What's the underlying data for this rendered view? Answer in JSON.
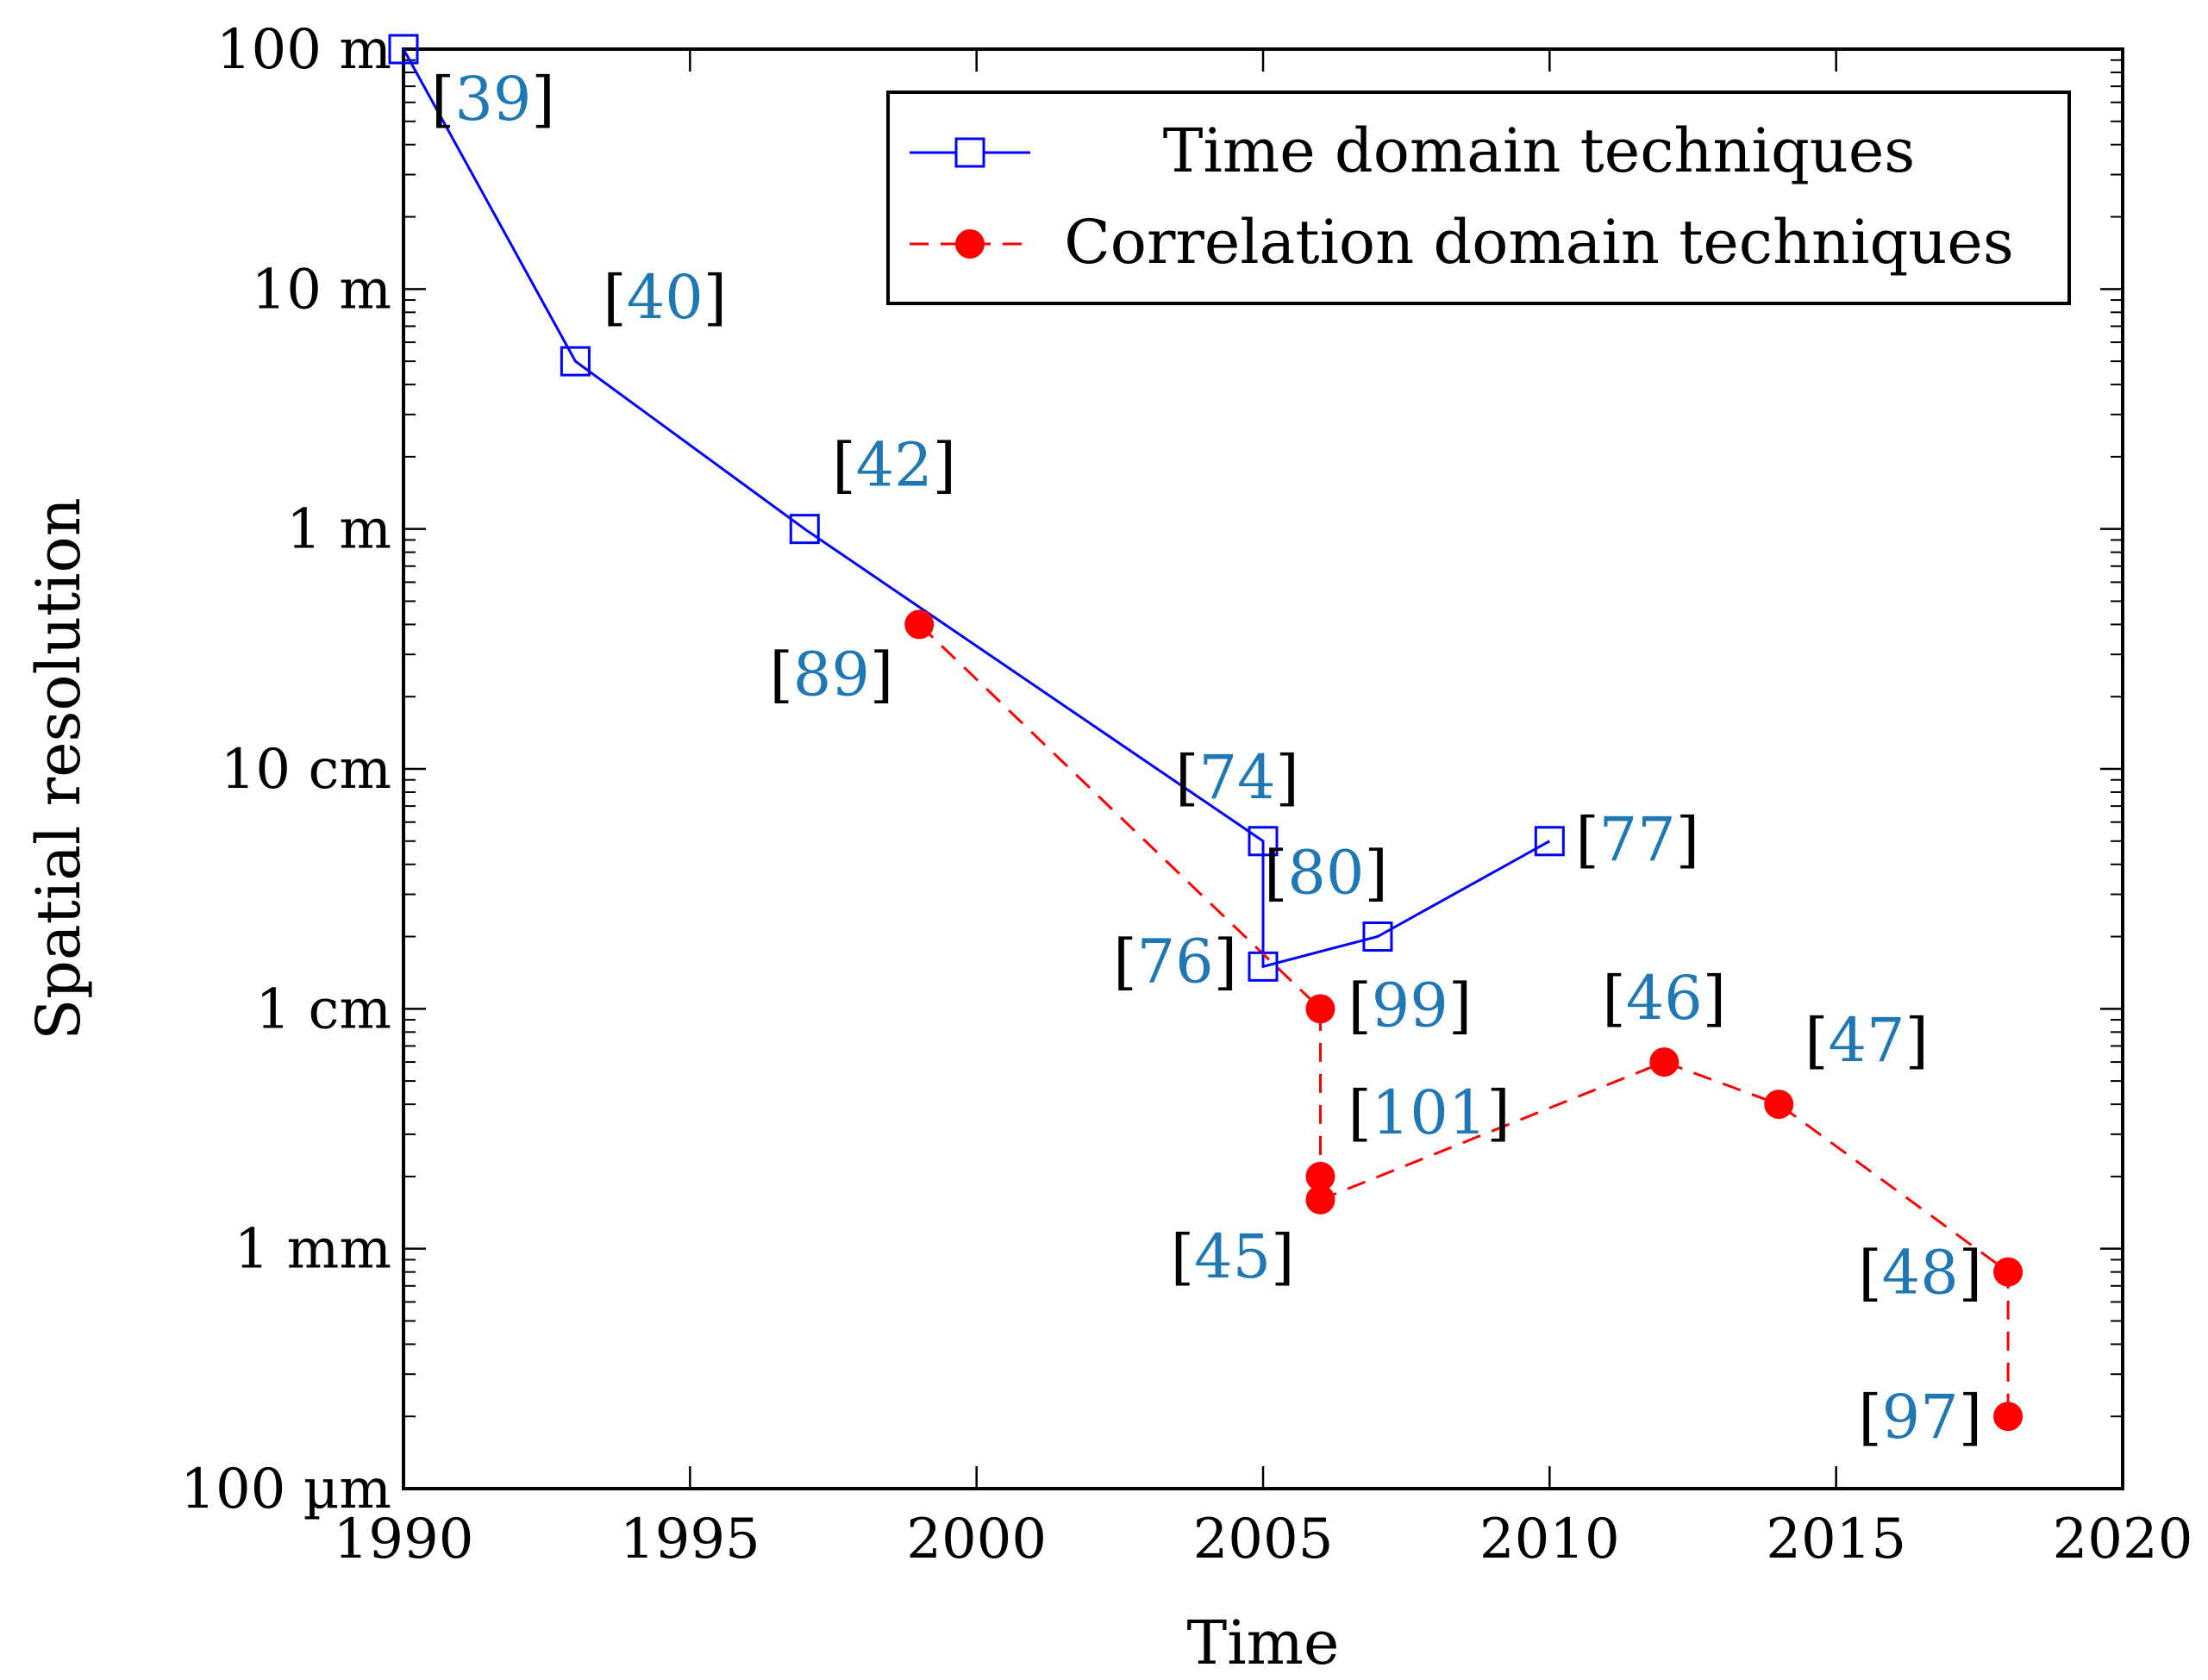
{
  "chart_data": {
    "type": "line",
    "title": "",
    "xlabel": "Time",
    "ylabel": "Spatial resolution",
    "xlim": [
      1990,
      2020
    ],
    "ylim_m": [
      0.0001,
      100
    ],
    "yscale": "log",
    "x_ticks": [
      1990,
      1995,
      2000,
      2005,
      2010,
      2015,
      2020
    ],
    "x_tick_labels": [
      "1990",
      "1995",
      "2000",
      "2005",
      "2010",
      "2015",
      "2020"
    ],
    "y_ticks_m": [
      100,
      10,
      1,
      0.1,
      0.01,
      0.001,
      0.0001
    ],
    "y_tick_labels": [
      "100 m",
      "10 m",
      "1 m",
      "10 cm",
      "1 cm",
      "1 mm",
      "100 µm"
    ],
    "legend_position": "top-right",
    "series": [
      {
        "name": "Time domain techniques",
        "color": "#0000ff",
        "marker": "square",
        "line_style": "solid",
        "points": [
          {
            "x": 1990,
            "y": 100,
            "ref": "39"
          },
          {
            "x": 1993,
            "y": 5,
            "ref": "40"
          },
          {
            "x": 1997,
            "y": 1,
            "ref": "42"
          },
          {
            "x": 2005,
            "y": 0.05,
            "ref": "74"
          },
          {
            "x": 2005,
            "y": 0.015,
            "ref": "76"
          },
          {
            "x": 2007,
            "y": 0.02,
            "ref": "80"
          },
          {
            "x": 2010,
            "y": 0.05,
            "ref": "77"
          }
        ]
      },
      {
        "name": "Correlation domain techniques",
        "color": "#ff0000",
        "marker": "circle",
        "line_style": "dashed",
        "points": [
          {
            "x": 1999,
            "y": 0.4,
            "ref": "89"
          },
          {
            "x": 2006,
            "y": 0.01,
            "ref": "99"
          },
          {
            "x": 2006,
            "y": 0.002,
            "ref": "101"
          },
          {
            "x": 2006,
            "y": 0.0016,
            "ref": "45"
          },
          {
            "x": 2012,
            "y": 0.006,
            "ref": "46"
          },
          {
            "x": 2014,
            "y": 0.004,
            "ref": "47"
          },
          {
            "x": 2018,
            "y": 0.0008,
            "ref": "48"
          },
          {
            "x": 2018,
            "y": 0.0002,
            "ref": "97"
          }
        ]
      }
    ],
    "ref_color": "#1f77b4",
    "bracket_color": "#000000"
  }
}
